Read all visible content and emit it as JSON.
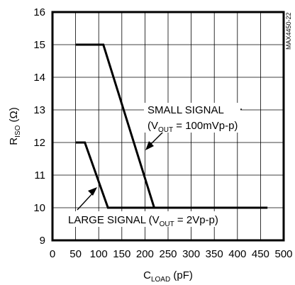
{
  "chart_data": {
    "type": "line",
    "figure_id": "MAX4450-22",
    "xlabel": {
      "main": "C",
      "sub": "LOAD",
      "unit": " (pF)"
    },
    "ylabel": {
      "main": "R",
      "sub": "ISO",
      "unit": " (Ω)"
    },
    "xlim": [
      0,
      500
    ],
    "ylim": [
      9,
      16
    ],
    "xticks": [
      0,
      50,
      100,
      150,
      200,
      250,
      300,
      350,
      400,
      450,
      500
    ],
    "yticks": [
      9,
      10,
      11,
      12,
      13,
      14,
      15,
      16
    ],
    "grid": true,
    "series": [
      {
        "name": "SMALL SIGNAL",
        "condition": "V_OUT = 100mVp-p",
        "x": [
          50,
          110,
          220
        ],
        "y": [
          15,
          15,
          10
        ]
      },
      {
        "name": "LARGE SIGNAL",
        "condition": "V_OUT = 2Vp-p",
        "x": [
          50,
          70,
          120,
          465
        ],
        "y": [
          12,
          12,
          10,
          10
        ]
      }
    ],
    "annotations": {
      "small_signal_line1": "SMALL SIGNAL",
      "small_signal_line2_pre": "(V",
      "small_signal_line2_sub": "OUT",
      "small_signal_line2_post": " = 100mVp-p)",
      "large_signal_pre": "LARGE SIGNAL (V",
      "large_signal_sub": "OUT",
      "large_signal_post": " = 2Vp-p)"
    }
  }
}
